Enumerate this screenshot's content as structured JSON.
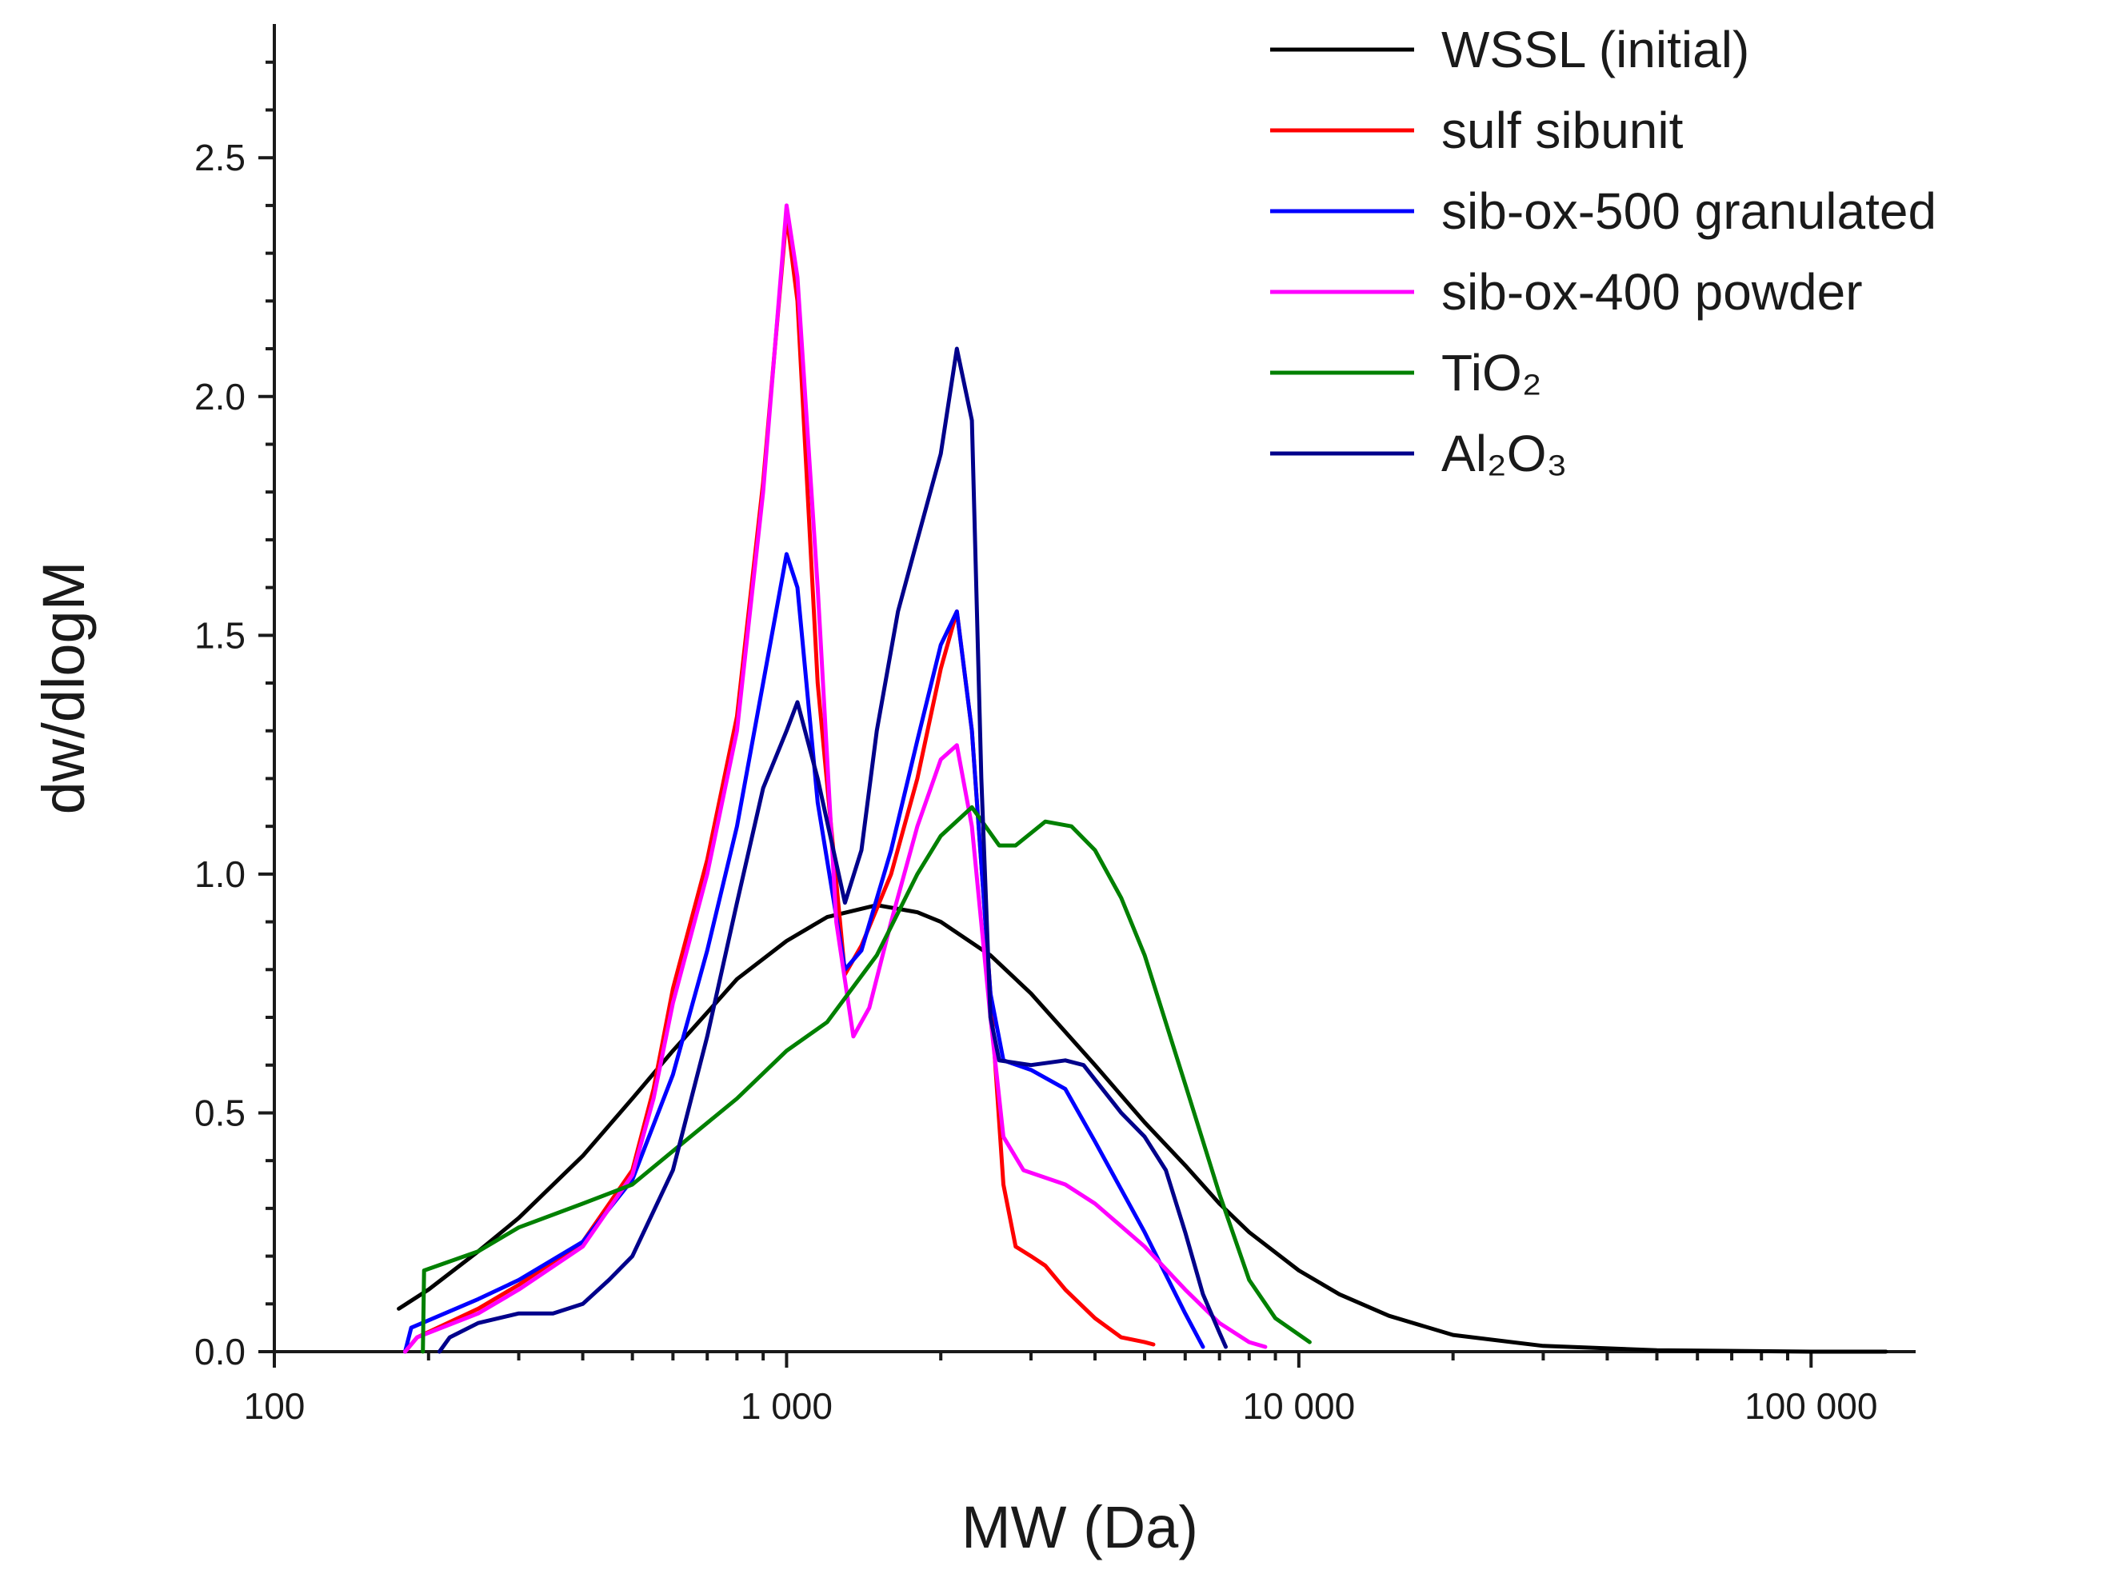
{
  "chart_data": {
    "type": "line",
    "xscale": "log",
    "xlabel": "MW (Da)",
    "ylabel": "dw/dlogM",
    "xlim": [
      100,
      160000
    ],
    "ylim": [
      0,
      2.78
    ],
    "xticks": [
      100,
      1000,
      10000,
      100000
    ],
    "xtick_labels": [
      "100",
      "1 000",
      "10 000",
      "100 000"
    ],
    "yticks": [
      0.0,
      0.5,
      1.0,
      1.5,
      2.0,
      2.5
    ],
    "ytick_labels": [
      "0.0",
      "0.5",
      "1.0",
      "1.5",
      "2.0",
      "2.5"
    ],
    "grid": false,
    "legend_position": "top-right",
    "series": [
      {
        "name": "WSSL (initial)",
        "color": "#000000",
        "points": [
          [
            175,
            0.09
          ],
          [
            200,
            0.13
          ],
          [
            250,
            0.21
          ],
          [
            300,
            0.28
          ],
          [
            400,
            0.41
          ],
          [
            500,
            0.53
          ],
          [
            600,
            0.63
          ],
          [
            700,
            0.71
          ],
          [
            800,
            0.78
          ],
          [
            1000,
            0.86
          ],
          [
            1200,
            0.91
          ],
          [
            1500,
            0.935
          ],
          [
            1800,
            0.92
          ],
          [
            2000,
            0.9
          ],
          [
            2500,
            0.83
          ],
          [
            3000,
            0.75
          ],
          [
            4000,
            0.6
          ],
          [
            5000,
            0.48
          ],
          [
            6000,
            0.39
          ],
          [
            7000,
            0.31
          ],
          [
            8000,
            0.25
          ],
          [
            10000,
            0.17
          ],
          [
            12000,
            0.12
          ],
          [
            15000,
            0.075
          ],
          [
            20000,
            0.035
          ],
          [
            30000,
            0.012
          ],
          [
            50000,
            0.003
          ],
          [
            100000,
            0.0
          ],
          [
            140000,
            0.0
          ]
        ]
      },
      {
        "name": "sulf sibunit",
        "color": "#ff0000",
        "points": [
          [
            180,
            0.0
          ],
          [
            190,
            0.03
          ],
          [
            250,
            0.09
          ],
          [
            300,
            0.14
          ],
          [
            400,
            0.23
          ],
          [
            500,
            0.38
          ],
          [
            550,
            0.55
          ],
          [
            600,
            0.76
          ],
          [
            700,
            1.03
          ],
          [
            800,
            1.33
          ],
          [
            900,
            1.82
          ],
          [
            1000,
            2.38
          ],
          [
            1050,
            2.2
          ],
          [
            1150,
            1.4
          ],
          [
            1300,
            0.79
          ],
          [
            1400,
            0.85
          ],
          [
            1600,
            1.0
          ],
          [
            1800,
            1.2
          ],
          [
            2000,
            1.43
          ],
          [
            2150,
            1.55
          ],
          [
            2300,
            1.3
          ],
          [
            2500,
            0.75
          ],
          [
            2650,
            0.35
          ],
          [
            2800,
            0.22
          ],
          [
            3000,
            0.2
          ],
          [
            3200,
            0.18
          ],
          [
            3500,
            0.13
          ],
          [
            4000,
            0.07
          ],
          [
            4500,
            0.03
          ],
          [
            5000,
            0.02
          ],
          [
            5200,
            0.015
          ]
        ]
      },
      {
        "name": "sib-ox-500 granulated",
        "color": "#0000ff",
        "points": [
          [
            180,
            0.0
          ],
          [
            185,
            0.05
          ],
          [
            250,
            0.11
          ],
          [
            300,
            0.15
          ],
          [
            400,
            0.23
          ],
          [
            500,
            0.36
          ],
          [
            600,
            0.58
          ],
          [
            700,
            0.84
          ],
          [
            800,
            1.1
          ],
          [
            900,
            1.4
          ],
          [
            1000,
            1.67
          ],
          [
            1050,
            1.6
          ],
          [
            1150,
            1.15
          ],
          [
            1300,
            0.8
          ],
          [
            1400,
            0.84
          ],
          [
            1600,
            1.05
          ],
          [
            1800,
            1.28
          ],
          [
            2000,
            1.48
          ],
          [
            2150,
            1.55
          ],
          [
            2300,
            1.3
          ],
          [
            2500,
            0.75
          ],
          [
            2650,
            0.61
          ],
          [
            3000,
            0.59
          ],
          [
            3500,
            0.55
          ],
          [
            4000,
            0.44
          ],
          [
            5000,
            0.25
          ],
          [
            6000,
            0.08
          ],
          [
            6500,
            0.01
          ]
        ]
      },
      {
        "name": "sib-ox-400 powder",
        "color": "#ff00ff",
        "points": [
          [
            180,
            0.0
          ],
          [
            190,
            0.03
          ],
          [
            250,
            0.08
          ],
          [
            300,
            0.13
          ],
          [
            400,
            0.22
          ],
          [
            500,
            0.37
          ],
          [
            550,
            0.53
          ],
          [
            600,
            0.73
          ],
          [
            700,
            1.0
          ],
          [
            800,
            1.3
          ],
          [
            900,
            1.8
          ],
          [
            1000,
            2.4
          ],
          [
            1050,
            2.25
          ],
          [
            1150,
            1.6
          ],
          [
            1250,
            0.9
          ],
          [
            1350,
            0.66
          ],
          [
            1450,
            0.72
          ],
          [
            1600,
            0.9
          ],
          [
            1800,
            1.1
          ],
          [
            2000,
            1.24
          ],
          [
            2150,
            1.27
          ],
          [
            2300,
            1.1
          ],
          [
            2500,
            0.7
          ],
          [
            2650,
            0.45
          ],
          [
            2900,
            0.38
          ],
          [
            3500,
            0.35
          ],
          [
            4000,
            0.31
          ],
          [
            5000,
            0.22
          ],
          [
            6000,
            0.13
          ],
          [
            7000,
            0.06
          ],
          [
            8000,
            0.02
          ],
          [
            8600,
            0.01
          ]
        ]
      },
      {
        "name": "TiO₂",
        "color": "#008000",
        "points": [
          [
            195,
            0.0
          ],
          [
            196,
            0.17
          ],
          [
            250,
            0.21
          ],
          [
            300,
            0.26
          ],
          [
            400,
            0.31
          ],
          [
            500,
            0.35
          ],
          [
            600,
            0.42
          ],
          [
            800,
            0.53
          ],
          [
            1000,
            0.63
          ],
          [
            1200,
            0.69
          ],
          [
            1500,
            0.83
          ],
          [
            1800,
            1.0
          ],
          [
            2000,
            1.08
          ],
          [
            2300,
            1.14
          ],
          [
            2600,
            1.06
          ],
          [
            2800,
            1.06
          ],
          [
            3200,
            1.11
          ],
          [
            3600,
            1.1
          ],
          [
            4000,
            1.05
          ],
          [
            4500,
            0.95
          ],
          [
            5000,
            0.83
          ],
          [
            6000,
            0.56
          ],
          [
            7000,
            0.33
          ],
          [
            8000,
            0.15
          ],
          [
            9000,
            0.07
          ],
          [
            10500,
            0.02
          ]
        ]
      },
      {
        "name": "Al₂O₃",
        "color": "#00008b",
        "points": [
          [
            210,
            0.0
          ],
          [
            220,
            0.03
          ],
          [
            250,
            0.06
          ],
          [
            300,
            0.08
          ],
          [
            350,
            0.08
          ],
          [
            400,
            0.1
          ],
          [
            450,
            0.15
          ],
          [
            500,
            0.2
          ],
          [
            600,
            0.38
          ],
          [
            700,
            0.66
          ],
          [
            800,
            0.94
          ],
          [
            900,
            1.18
          ],
          [
            1000,
            1.3
          ],
          [
            1050,
            1.36
          ],
          [
            1150,
            1.2
          ],
          [
            1300,
            0.94
          ],
          [
            1400,
            1.05
          ],
          [
            1500,
            1.3
          ],
          [
            1650,
            1.55
          ],
          [
            1800,
            1.7
          ],
          [
            2000,
            1.88
          ],
          [
            2150,
            2.1
          ],
          [
            2300,
            1.95
          ],
          [
            2400,
            1.2
          ],
          [
            2500,
            0.7
          ],
          [
            2600,
            0.61
          ],
          [
            3000,
            0.6
          ],
          [
            3500,
            0.61
          ],
          [
            3800,
            0.6
          ],
          [
            4500,
            0.5
          ],
          [
            5000,
            0.45
          ],
          [
            5500,
            0.38
          ],
          [
            6000,
            0.25
          ],
          [
            6500,
            0.12
          ],
          [
            7000,
            0.04
          ],
          [
            7200,
            0.01
          ]
        ]
      }
    ]
  }
}
